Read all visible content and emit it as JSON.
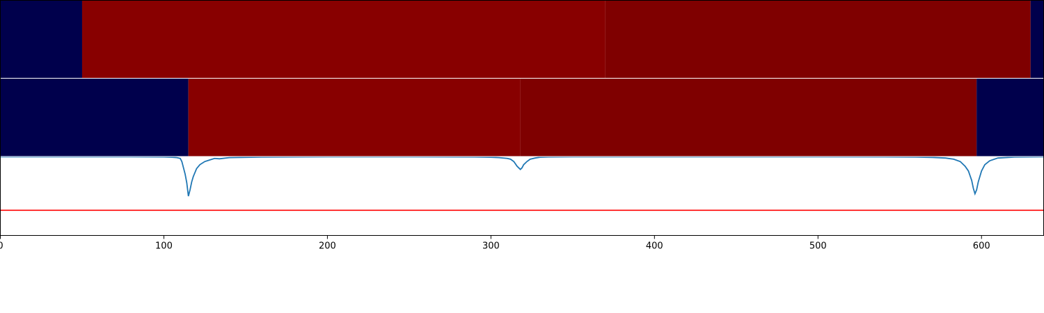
{
  "chart_data": {
    "type": "heatmap",
    "xlim": [
      0,
      638
    ],
    "x_ticks": [
      0,
      100,
      200,
      300,
      400,
      500,
      600
    ],
    "colors": {
      "background_segment": "#00004c",
      "segment_a": "#880000",
      "segment_b": "#7f0000",
      "axes_border": "#000000",
      "separator": "#ffffff",
      "signal_line": "#1f77b4",
      "threshold_line": "#ff0000"
    },
    "rows": [
      {
        "name": "",
        "segments": [
          {
            "start": 0,
            "end": 50,
            "color_key": "background_segment"
          },
          {
            "start": 50,
            "end": 370,
            "color_key": "segment_a"
          },
          {
            "start": 370,
            "end": 630,
            "color_key": "segment_b"
          },
          {
            "start": 630,
            "end": 638,
            "color_key": "background_segment"
          }
        ]
      },
      {
        "name": "",
        "segments": [
          {
            "start": 0,
            "end": 115,
            "color_key": "background_segment"
          },
          {
            "start": 115,
            "end": 318,
            "color_key": "segment_a"
          },
          {
            "start": 318,
            "end": 597,
            "color_key": "segment_b"
          },
          {
            "start": 597,
            "end": 638,
            "color_key": "background_segment"
          }
        ]
      }
    ],
    "line_panel": {
      "ylim": [
        0,
        1
      ],
      "threshold": 0.32,
      "series": [
        {
          "name": "",
          "x": [
            0,
            60,
            80,
            90,
            100,
            105,
            108,
            110,
            111,
            112,
            113,
            114,
            115,
            116,
            117,
            118,
            120,
            122,
            125,
            128,
            131,
            134,
            140,
            160,
            200,
            250,
            290,
            300,
            305,
            310,
            312,
            314,
            316,
            317,
            318,
            319,
            320,
            322,
            324,
            327,
            330,
            335,
            350,
            400,
            450,
            500,
            540,
            560,
            570,
            578,
            583,
            587,
            590,
            592,
            593,
            594,
            595,
            596,
            597,
            598,
            599,
            600,
            602,
            605,
            610,
            620,
            638
          ],
          "y": [
            1.0,
            1.0,
            1.0,
            0.999,
            0.998,
            0.995,
            0.99,
            0.98,
            0.94,
            0.86,
            0.78,
            0.67,
            0.5,
            0.58,
            0.68,
            0.75,
            0.85,
            0.9,
            0.94,
            0.96,
            0.98,
            0.975,
            0.99,
            0.997,
            1.0,
            1.0,
            0.998,
            0.995,
            0.99,
            0.98,
            0.97,
            0.94,
            0.88,
            0.86,
            0.84,
            0.86,
            0.9,
            0.94,
            0.97,
            0.985,
            0.995,
            0.998,
            1.0,
            1.0,
            1.0,
            1.0,
            0.999,
            0.997,
            0.993,
            0.985,
            0.97,
            0.94,
            0.88,
            0.82,
            0.76,
            0.7,
            0.6,
            0.53,
            0.58,
            0.68,
            0.75,
            0.82,
            0.9,
            0.95,
            0.985,
            0.997,
            1.0
          ]
        }
      ]
    }
  }
}
